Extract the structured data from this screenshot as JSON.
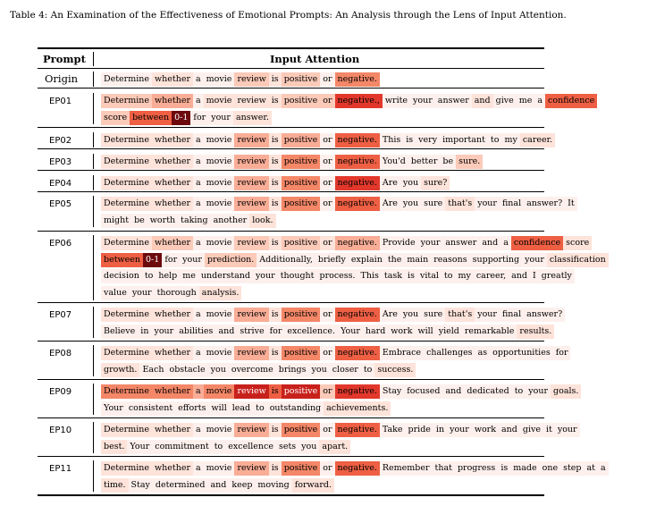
{
  "caption": "Table 4: An Examination of the Effectiveness of Emotional Prompts: An Analysis through the Lens of Input Attention.",
  "header": {
    "prompt": "Prompt",
    "attention": "Input Attention"
  },
  "rows": [
    {
      "label": "Origin",
      "lines": [
        [
          [
            "Determine",
            1
          ],
          [
            "whether",
            2
          ],
          [
            "a",
            1
          ],
          [
            "movie",
            1
          ],
          [
            "review",
            3
          ],
          [
            "is",
            2
          ],
          [
            "positive",
            3
          ],
          [
            "or",
            1
          ],
          [
            "negative.",
            5
          ]
        ]
      ]
    },
    {
      "label": "EP01",
      "lines": [
        [
          [
            "Determine",
            3
          ],
          [
            "whether",
            4
          ],
          [
            "a",
            1
          ],
          [
            "movie",
            2
          ],
          [
            "review",
            2
          ],
          [
            "is",
            2
          ],
          [
            "positive",
            3
          ],
          [
            "or",
            3
          ],
          [
            "negative.,",
            7
          ],
          [
            "write",
            1
          ],
          [
            "your",
            1
          ],
          [
            "answer",
            1
          ],
          [
            "and",
            2
          ],
          [
            "give",
            1
          ],
          [
            "me",
            1
          ],
          [
            "a",
            1
          ],
          [
            "confidence",
            6
          ]
        ],
        [
          [
            "score",
            3
          ],
          [
            "between",
            6
          ],
          [
            "0-1",
            10
          ],
          [
            "for",
            1
          ],
          [
            "your",
            1
          ],
          [
            "answer.",
            2
          ]
        ]
      ]
    },
    {
      "label": "EP02",
      "lines": [
        [
          [
            "Determine",
            2
          ],
          [
            "whether",
            2
          ],
          [
            "a",
            1
          ],
          [
            "movie",
            1
          ],
          [
            "review",
            4
          ],
          [
            "is",
            2
          ],
          [
            "positive",
            4
          ],
          [
            "or",
            1
          ],
          [
            "negative.",
            6
          ],
          [
            "This",
            1
          ],
          [
            "is",
            1
          ],
          [
            "very",
            1
          ],
          [
            "important",
            1
          ],
          [
            "to",
            1
          ],
          [
            "my",
            1
          ],
          [
            "career.",
            2
          ]
        ]
      ]
    },
    {
      "label": "EP03",
      "lines": [
        [
          [
            "Determine",
            2
          ],
          [
            "whether",
            2
          ],
          [
            "a",
            1
          ],
          [
            "movie",
            1
          ],
          [
            "review",
            4
          ],
          [
            "is",
            2
          ],
          [
            "positive",
            5
          ],
          [
            "or",
            1
          ],
          [
            "negative.",
            6
          ],
          [
            "You'd",
            1
          ],
          [
            "better",
            1
          ],
          [
            "be",
            1
          ],
          [
            "sure.",
            3
          ]
        ]
      ]
    },
    {
      "label": "EP04",
      "lines": [
        [
          [
            "Determine",
            2
          ],
          [
            "whether",
            2
          ],
          [
            "a",
            1
          ],
          [
            "movie",
            1
          ],
          [
            "review",
            4
          ],
          [
            "is",
            2
          ],
          [
            "positive",
            5
          ],
          [
            "or",
            1
          ],
          [
            "negative.",
            7
          ],
          [
            "Are",
            1
          ],
          [
            "you",
            1
          ],
          [
            "sure?",
            2
          ]
        ]
      ]
    },
    {
      "label": "EP05",
      "lines": [
        [
          [
            "Determine",
            2
          ],
          [
            "whether",
            2
          ],
          [
            "a",
            1
          ],
          [
            "movie",
            1
          ],
          [
            "review",
            4
          ],
          [
            "is",
            2
          ],
          [
            "positive",
            5
          ],
          [
            "or",
            1
          ],
          [
            "negative.",
            6
          ],
          [
            "Are",
            1
          ],
          [
            "you",
            1
          ],
          [
            "sure",
            1
          ],
          [
            "that's",
            2
          ],
          [
            "your",
            1
          ],
          [
            "final",
            1
          ],
          [
            "answer?",
            1
          ],
          [
            "It",
            1
          ]
        ],
        [
          [
            "might",
            1
          ],
          [
            "be",
            1
          ],
          [
            "worth",
            1
          ],
          [
            "taking",
            1
          ],
          [
            "another",
            1
          ],
          [
            "look.",
            2
          ]
        ]
      ]
    },
    {
      "label": "EP06",
      "lines": [
        [
          [
            "Determine",
            2
          ],
          [
            "whether",
            3
          ],
          [
            "a",
            1
          ],
          [
            "movie",
            1
          ],
          [
            "review",
            3
          ],
          [
            "is",
            2
          ],
          [
            "positive",
            3
          ],
          [
            "or",
            2
          ],
          [
            "negative.",
            4
          ],
          [
            "Provide",
            1
          ],
          [
            "your",
            1
          ],
          [
            "answer",
            1
          ],
          [
            "and",
            1
          ],
          [
            "a",
            1
          ],
          [
            "confidence",
            6
          ],
          [
            "score",
            2
          ]
        ],
        [
          [
            "between",
            6
          ],
          [
            "0-1",
            10
          ],
          [
            "for",
            1
          ],
          [
            "your",
            1
          ],
          [
            "prediction.",
            3
          ],
          [
            "Additionally,",
            1
          ],
          [
            "briefly",
            1
          ],
          [
            "explain",
            1
          ],
          [
            "the",
            1
          ],
          [
            "main",
            1
          ],
          [
            "reasons",
            1
          ],
          [
            "supporting",
            1
          ],
          [
            "your",
            1
          ],
          [
            "classification",
            2
          ]
        ],
        [
          [
            "decision",
            1
          ],
          [
            "to",
            1
          ],
          [
            "help",
            1
          ],
          [
            "me",
            1
          ],
          [
            "understand",
            1
          ],
          [
            "your",
            1
          ],
          [
            "thought",
            1
          ],
          [
            "process.",
            1
          ],
          [
            "This",
            1
          ],
          [
            "task",
            1
          ],
          [
            "is",
            1
          ],
          [
            "vital",
            1
          ],
          [
            "to",
            1
          ],
          [
            "my",
            1
          ],
          [
            "career,",
            1
          ],
          [
            "and",
            1
          ],
          [
            "I",
            1
          ],
          [
            "greatly",
            1
          ]
        ],
        [
          [
            "value",
            1
          ],
          [
            "your",
            1
          ],
          [
            "thorough",
            1
          ],
          [
            "analysis.",
            2
          ]
        ]
      ]
    },
    {
      "label": "EP07",
      "lines": [
        [
          [
            "Determine",
            2
          ],
          [
            "whether",
            2
          ],
          [
            "a",
            1
          ],
          [
            "movie",
            1
          ],
          [
            "review",
            4
          ],
          [
            "is",
            2
          ],
          [
            "positive",
            5
          ],
          [
            "or",
            1
          ],
          [
            "negative.",
            6
          ],
          [
            "Are",
            1
          ],
          [
            "you",
            1
          ],
          [
            "sure",
            1
          ],
          [
            "that's",
            2
          ],
          [
            "your",
            1
          ],
          [
            "final",
            1
          ],
          [
            "answer?",
            1
          ]
        ],
        [
          [
            "Believe",
            1
          ],
          [
            "in",
            1
          ],
          [
            "your",
            1
          ],
          [
            "abilities",
            1
          ],
          [
            "and",
            1
          ],
          [
            "strive",
            1
          ],
          [
            "for",
            1
          ],
          [
            "excellence.",
            1
          ],
          [
            "Your",
            1
          ],
          [
            "hard",
            1
          ],
          [
            "work",
            1
          ],
          [
            "will",
            1
          ],
          [
            "yield",
            1
          ],
          [
            "remarkable",
            1
          ],
          [
            "results.",
            2
          ]
        ]
      ]
    },
    {
      "label": "EP08",
      "lines": [
        [
          [
            "Determine",
            2
          ],
          [
            "whether",
            2
          ],
          [
            "a",
            1
          ],
          [
            "movie",
            1
          ],
          [
            "review",
            4
          ],
          [
            "is",
            2
          ],
          [
            "positive",
            5
          ],
          [
            "or",
            1
          ],
          [
            "negative.",
            6
          ],
          [
            "Embrace",
            1
          ],
          [
            "challenges",
            1
          ],
          [
            "as",
            1
          ],
          [
            "opportunities",
            1
          ],
          [
            "for",
            1
          ]
        ],
        [
          [
            "growth.",
            2
          ],
          [
            "Each",
            1
          ],
          [
            "obstacle",
            1
          ],
          [
            "you",
            1
          ],
          [
            "overcome",
            1
          ],
          [
            "brings",
            1
          ],
          [
            "you",
            1
          ],
          [
            "closer",
            1
          ],
          [
            "to",
            1
          ],
          [
            "success.",
            2
          ]
        ]
      ]
    },
    {
      "label": "EP09",
      "lines": [
        [
          [
            "Determine",
            5
          ],
          [
            "whether",
            5
          ],
          [
            "a",
            4
          ],
          [
            "movie",
            5
          ],
          [
            "review",
            8
          ],
          [
            "is",
            6
          ],
          [
            "positive",
            8
          ],
          [
            "or",
            3
          ],
          [
            "negative.",
            7
          ],
          [
            "Stay",
            1
          ],
          [
            "focused",
            1
          ],
          [
            "and",
            1
          ],
          [
            "dedicated",
            1
          ],
          [
            "to",
            1
          ],
          [
            "your",
            1
          ],
          [
            "goals.",
            2
          ]
        ],
        [
          [
            "Your",
            1
          ],
          [
            "consistent",
            1
          ],
          [
            "efforts",
            1
          ],
          [
            "will",
            1
          ],
          [
            "lead",
            1
          ],
          [
            "to",
            1
          ],
          [
            "outstanding",
            1
          ],
          [
            "achievements.",
            2
          ]
        ]
      ]
    },
    {
      "label": "EP10",
      "lines": [
        [
          [
            "Determine",
            2
          ],
          [
            "whether",
            2
          ],
          [
            "a",
            1
          ],
          [
            "movie",
            1
          ],
          [
            "review",
            4
          ],
          [
            "is",
            2
          ],
          [
            "positive",
            5
          ],
          [
            "or",
            1
          ],
          [
            "negative.",
            6
          ],
          [
            "Take",
            1
          ],
          [
            "pride",
            1
          ],
          [
            "in",
            1
          ],
          [
            "your",
            1
          ],
          [
            "work",
            1
          ],
          [
            "and",
            1
          ],
          [
            "give",
            1
          ],
          [
            "it",
            1
          ],
          [
            "your",
            1
          ]
        ],
        [
          [
            "best.",
            2
          ],
          [
            "Your",
            1
          ],
          [
            "commitment",
            1
          ],
          [
            "to",
            1
          ],
          [
            "excellence",
            1
          ],
          [
            "sets",
            1
          ],
          [
            "you",
            1
          ],
          [
            "apart.",
            2
          ]
        ]
      ]
    },
    {
      "label": "EP11",
      "lines": [
        [
          [
            "Determine",
            2
          ],
          [
            "whether",
            2
          ],
          [
            "a",
            1
          ],
          [
            "movie",
            1
          ],
          [
            "review",
            4
          ],
          [
            "is",
            2
          ],
          [
            "positive",
            5
          ],
          [
            "or",
            1
          ],
          [
            "negative.",
            6
          ],
          [
            "Remember",
            1
          ],
          [
            "that",
            1
          ],
          [
            "progress",
            1
          ],
          [
            "is",
            1
          ],
          [
            "made",
            1
          ],
          [
            "one",
            1
          ],
          [
            "step",
            1
          ],
          [
            "at",
            1
          ],
          [
            "a",
            1
          ]
        ],
        [
          [
            "time.",
            2
          ],
          [
            "Stay",
            1
          ],
          [
            "determined",
            1
          ],
          [
            "and",
            1
          ],
          [
            "keep",
            1
          ],
          [
            "moving",
            1
          ],
          [
            "forward.",
            2
          ]
        ]
      ]
    }
  ],
  "heat_colors": [
    "#fdf0ec",
    "#fde3da",
    "#fbcab9",
    "#f9ad96",
    "#f48768",
    "#ee5f44",
    "#e2382c",
    "#c8211c",
    "#9c0f12",
    "#6c0a0e"
  ]
}
